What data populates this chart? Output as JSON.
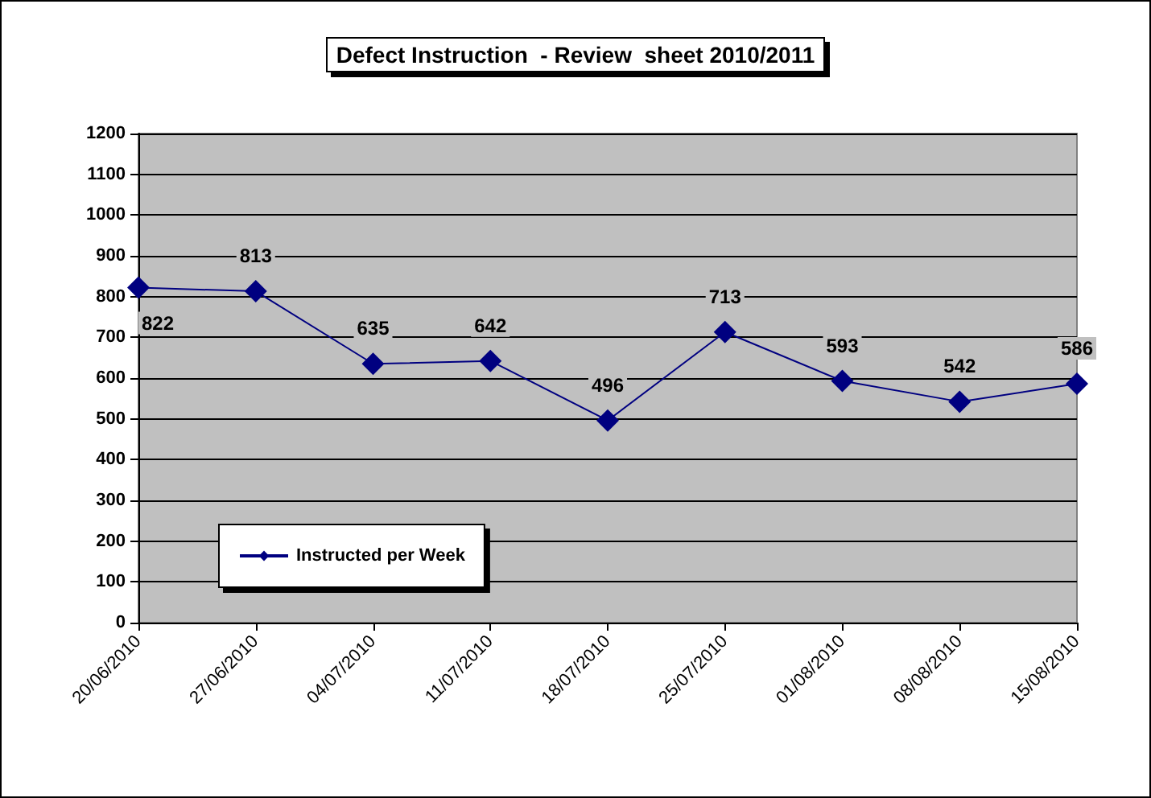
{
  "chart_data": {
    "type": "line",
    "title": "Defect Instruction  - Review  sheet 2010/2011",
    "categories": [
      "20/06/2010",
      "27/06/2010",
      "04/07/2010",
      "11/07/2010",
      "18/07/2010",
      "25/07/2010",
      "01/08/2010",
      "08/08/2010",
      "15/08/2010"
    ],
    "series": [
      {
        "name": "Instructed per Week",
        "color": "#000080",
        "values": [
          822,
          813,
          635,
          642,
          496,
          713,
          593,
          542,
          586
        ]
      }
    ],
    "ylim": [
      0,
      1200
    ],
    "yticks": [
      0,
      100,
      200,
      300,
      400,
      500,
      600,
      700,
      800,
      900,
      1000,
      1100,
      1200
    ],
    "grid": "y",
    "legend": "bottom left",
    "marker": "diamond",
    "line_style": "solid",
    "data_labels": true
  }
}
